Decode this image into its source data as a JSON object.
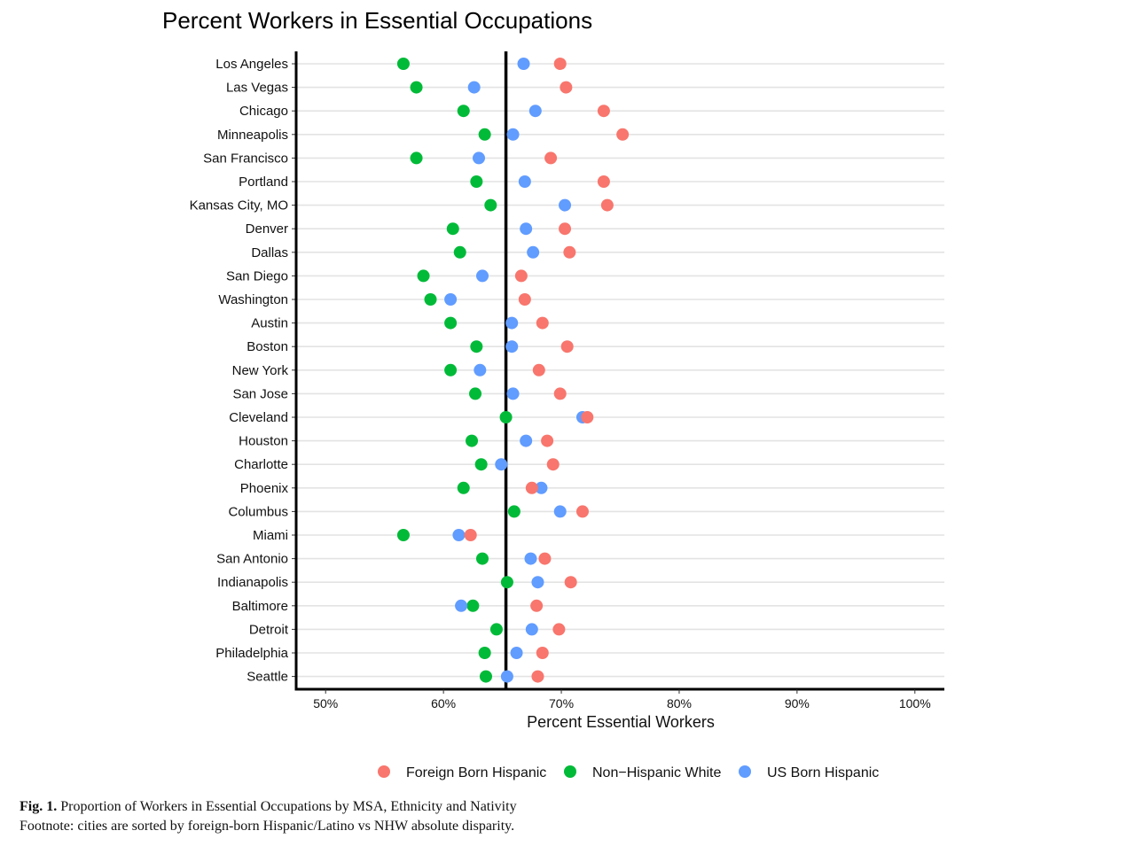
{
  "chart_data": {
    "type": "scatter",
    "title": "Percent Workers in Essential Occupations",
    "xlabel": "Percent Essential Workers",
    "ylabel": "",
    "xlim": [
      47.5,
      102.5
    ],
    "xticks": [
      50,
      60,
      70,
      80,
      90,
      100
    ],
    "xtick_labels": [
      "50%",
      "60%",
      "70%",
      "80%",
      "90%",
      "100%"
    ],
    "reference_line_x": 65.3,
    "grid": "horizontal",
    "legend_position": "bottom",
    "categories": [
      "Los Angeles",
      "Las Vegas",
      "Chicago",
      "Minneapolis",
      "San Francisco",
      "Portland",
      "Kansas City, MO",
      "Denver",
      "Dallas",
      "San Diego",
      "Washington",
      "Austin",
      "Boston",
      "New York",
      "San Jose",
      "Cleveland",
      "Houston",
      "Charlotte",
      "Phoenix",
      "Columbus",
      "Miami",
      "San Antonio",
      "Indianapolis",
      "Baltimore",
      "Detroit",
      "Philadelphia",
      "Seattle"
    ],
    "series": [
      {
        "name": "Foreign Born Hispanic",
        "color": "#F8766D",
        "values": [
          69.9,
          70.4,
          73.6,
          75.2,
          69.1,
          73.6,
          73.9,
          70.3,
          70.7,
          66.6,
          66.9,
          68.4,
          70.5,
          68.1,
          69.9,
          72.2,
          68.8,
          69.3,
          67.5,
          71.8,
          62.3,
          68.6,
          70.8,
          67.9,
          69.8,
          68.4,
          68.0
        ]
      },
      {
        "name": "Non−Hispanic White",
        "color": "#00BA38",
        "values": [
          56.6,
          57.7,
          61.7,
          63.5,
          57.7,
          62.8,
          64.0,
          60.8,
          61.4,
          58.3,
          58.9,
          60.6,
          62.8,
          60.6,
          62.7,
          65.3,
          62.4,
          63.2,
          61.7,
          66.0,
          56.6,
          63.3,
          65.4,
          62.5,
          64.5,
          63.5,
          63.6
        ]
      },
      {
        "name": "US Born Hispanic",
        "color": "#619CFF",
        "values": [
          66.8,
          62.6,
          67.8,
          65.9,
          63.0,
          66.9,
          70.3,
          67.0,
          67.6,
          63.3,
          60.6,
          65.8,
          65.8,
          63.1,
          65.9,
          71.8,
          67.0,
          64.9,
          68.3,
          69.9,
          61.3,
          67.4,
          68.0,
          61.5,
          67.5,
          66.2,
          65.4
        ]
      }
    ]
  },
  "caption": {
    "label": "Fig. 1.",
    "text": "Proportion of Workers in Essential Occupations by MSA, Ethnicity and Nativity",
    "footnote": "Footnote: cities are sorted by foreign-born Hispanic/Latino vs NHW absolute disparity."
  }
}
